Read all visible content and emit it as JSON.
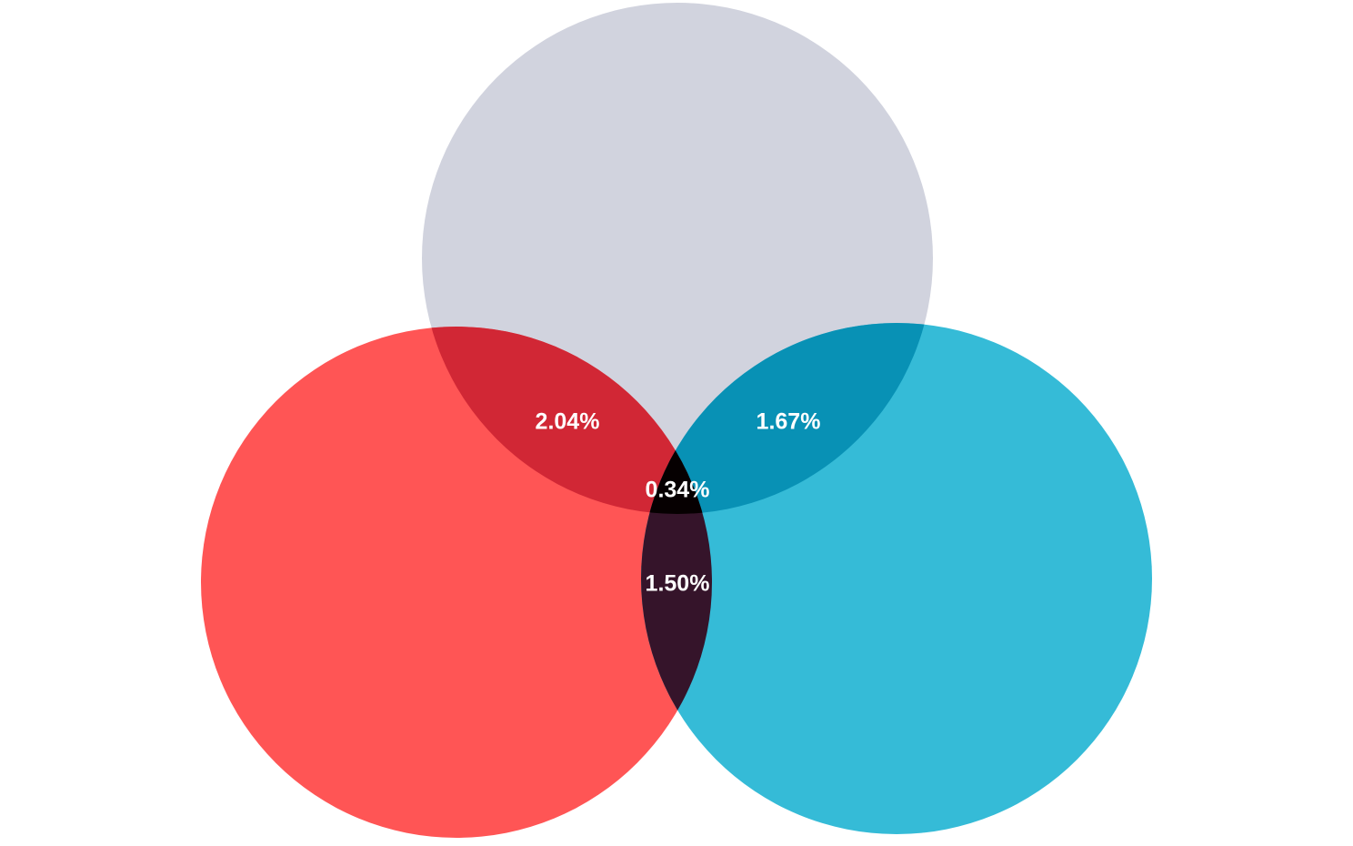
{
  "diagram": {
    "type": "venn-3",
    "sets": [
      {
        "key": "top",
        "color": "#d1d3de"
      },
      {
        "key": "left",
        "color": "#ff5555"
      },
      {
        "key": "right",
        "color": "#35bbd7"
      }
    ],
    "overlaps": [
      {
        "key": "top-left",
        "color": "#d12735",
        "label": "2.04%"
      },
      {
        "key": "top-right",
        "color": "#0891b5",
        "label": "1.67%"
      },
      {
        "key": "left-right",
        "color": "#35142a",
        "label": "1.50%"
      },
      {
        "key": "all-three",
        "color": "#060001",
        "label": "0.34%"
      }
    ]
  }
}
